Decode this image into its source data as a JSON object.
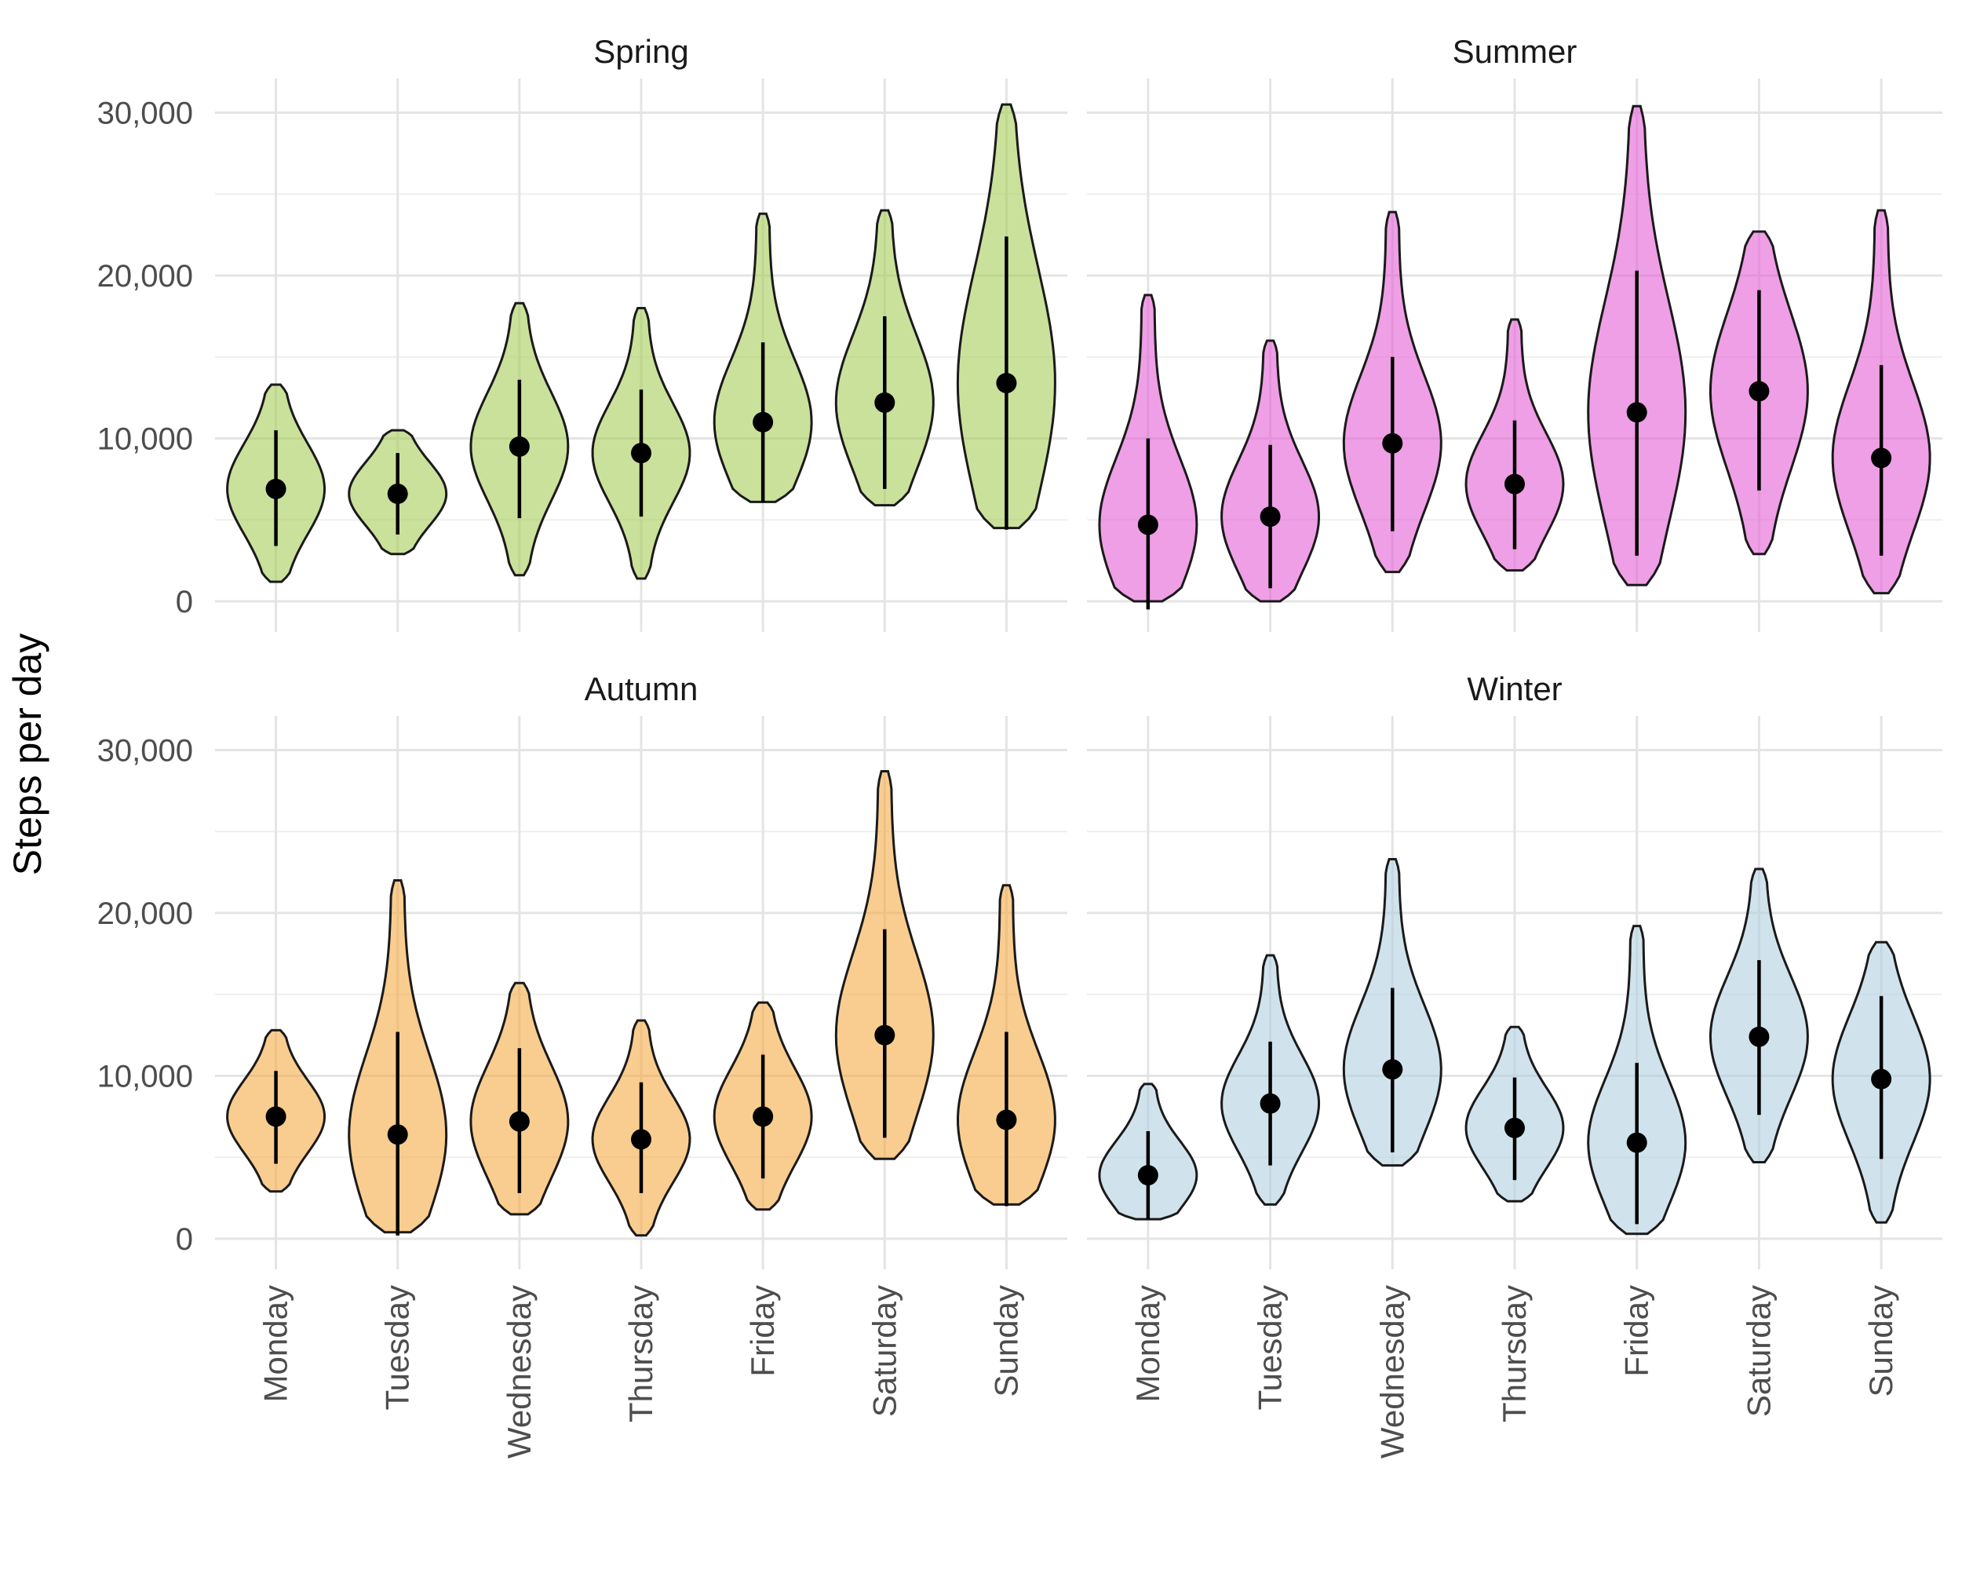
{
  "chart_data": {
    "type": "violin",
    "ylabel": "Steps per day",
    "xlabel": "",
    "ylim": [
      -3000,
      32000
    ],
    "y_ticks": [
      0,
      10000,
      20000,
      30000
    ],
    "y_tick_labels": [
      "0",
      "10,000",
      "20,000",
      "30,000"
    ],
    "categories": [
      "Monday",
      "Tuesday",
      "Wednesday",
      "Thursday",
      "Friday",
      "Saturday",
      "Sunday"
    ],
    "grid": true,
    "legend": "none",
    "facets": [
      {
        "name": "Spring",
        "color": "#a6cd58",
        "points": [
          {
            "min": 1200,
            "max": 13300,
            "mid": 6900,
            "lo": 3400,
            "hi": 10500
          },
          {
            "min": 2900,
            "max": 10500,
            "mid": 6600,
            "lo": 4100,
            "hi": 9100
          },
          {
            "min": 1600,
            "max": 18300,
            "mid": 9500,
            "lo": 5100,
            "hi": 13600
          },
          {
            "min": 1400,
            "max": 18000,
            "mid": 9100,
            "lo": 5200,
            "hi": 13000
          },
          {
            "min": 6100,
            "max": 23800,
            "mid": 11000,
            "lo": 6100,
            "hi": 15900
          },
          {
            "min": 5900,
            "max": 24000,
            "mid": 12200,
            "lo": 6900,
            "hi": 17500
          },
          {
            "min": 4500,
            "max": 30500,
            "mid": 13400,
            "lo": 4400,
            "hi": 22400
          }
        ]
      },
      {
        "name": "Summer",
        "color": "#e45fd3",
        "points": [
          {
            "min": 0,
            "max": 18800,
            "mid": 4700,
            "lo": -500,
            "hi": 10000
          },
          {
            "min": 0,
            "max": 16000,
            "mid": 5200,
            "lo": 800,
            "hi": 9600
          },
          {
            "min": 1800,
            "max": 23900,
            "mid": 9700,
            "lo": 4300,
            "hi": 15000
          },
          {
            "min": 1900,
            "max": 17300,
            "mid": 7200,
            "lo": 3200,
            "hi": 11100
          },
          {
            "min": 1000,
            "max": 30400,
            "mid": 11600,
            "lo": 2800,
            "hi": 20300
          },
          {
            "min": 2900,
            "max": 22700,
            "mid": 12900,
            "lo": 6800,
            "hi": 19100
          },
          {
            "min": 500,
            "max": 24000,
            "mid": 8800,
            "lo": 2800,
            "hi": 14500
          }
        ]
      },
      {
        "name": "Autumn",
        "color": "#f5ac44",
        "points": [
          {
            "min": 2900,
            "max": 12800,
            "mid": 7500,
            "lo": 4600,
            "hi": 10300
          },
          {
            "min": 400,
            "max": 22000,
            "mid": 6400,
            "lo": 200,
            "hi": 12700
          },
          {
            "min": 1500,
            "max": 15700,
            "mid": 7200,
            "lo": 2800,
            "hi": 11700
          },
          {
            "min": 200,
            "max": 13400,
            "mid": 6100,
            "lo": 2800,
            "hi": 9600
          },
          {
            "min": 1800,
            "max": 14500,
            "mid": 7500,
            "lo": 3700,
            "hi": 11300
          },
          {
            "min": 4900,
            "max": 28700,
            "mid": 12500,
            "lo": 6200,
            "hi": 19000
          },
          {
            "min": 2100,
            "max": 21700,
            "mid": 7300,
            "lo": 2000,
            "hi": 12700
          }
        ]
      },
      {
        "name": "Winter",
        "color": "#b0d0e0",
        "points": [
          {
            "min": 1200,
            "max": 9500,
            "mid": 3900,
            "lo": 1200,
            "hi": 6600
          },
          {
            "min": 2100,
            "max": 17400,
            "mid": 8300,
            "lo": 4500,
            "hi": 12100
          },
          {
            "min": 4500,
            "max": 23300,
            "mid": 10400,
            "lo": 5300,
            "hi": 15400
          },
          {
            "min": 2300,
            "max": 13000,
            "mid": 6800,
            "lo": 3600,
            "hi": 9900
          },
          {
            "min": 300,
            "max": 19200,
            "mid": 5900,
            "lo": 900,
            "hi": 10800
          },
          {
            "min": 4700,
            "max": 22700,
            "mid": 12400,
            "lo": 7600,
            "hi": 17100
          },
          {
            "min": 1000,
            "max": 18200,
            "mid": 9800,
            "lo": 4900,
            "hi": 14900
          }
        ]
      }
    ]
  }
}
